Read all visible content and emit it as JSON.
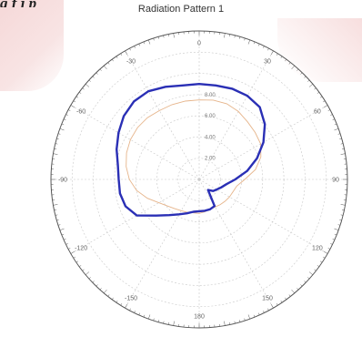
{
  "page": {
    "top_fragment": "g                          f   j   p"
  },
  "chart_data": {
    "type": "polar",
    "title": "Radiation Pattern 1",
    "angle_labels": [
      "0",
      "30",
      "60",
      "90",
      "120",
      "150",
      "180",
      "-150",
      "-120",
      "-90",
      "-60",
      "-30"
    ],
    "angle_values": [
      0,
      30,
      60,
      90,
      120,
      150,
      180,
      -150,
      -120,
      -90,
      -60,
      -30
    ],
    "radial_ticks": [
      2.0,
      4.0,
      6.0,
      8.0
    ],
    "radial_tick_labels": [
      "2.00",
      "4.00",
      "6.00",
      "8.00"
    ],
    "r_max": 14,
    "grid": true,
    "colors": {
      "series_main": "#2a2fb5",
      "series_faint": "#e6b48a",
      "grid": "#c8c8c8",
      "axis": "#555555"
    },
    "series": [
      {
        "theta": [
          0,
          10,
          20,
          30,
          40,
          50,
          60,
          70,
          80,
          90,
          100,
          110,
          120,
          130,
          140,
          150,
          160,
          170,
          180,
          -170,
          -160,
          -150,
          -140,
          -130,
          -120,
          -110,
          -100,
          -90,
          -80,
          -70,
          -60,
          -50,
          -40,
          -30,
          -20,
          -10
        ],
        "r": [
          9.0,
          9.0,
          9.1,
          9.1,
          8.9,
          8.1,
          7.0,
          5.8,
          4.6,
          3.4,
          2.6,
          2.2,
          1.9,
          1.7,
          1.3,
          2.9,
          3.0,
          3.0,
          3.0,
          3.1,
          3.4,
          3.8,
          4.4,
          5.3,
          6.8,
          7.4,
          7.6,
          7.6,
          7.8,
          8.3,
          8.8,
          9.3,
          9.6,
          9.6,
          9.3,
          9.0
        ]
      },
      {
        "theta": [
          0,
          10,
          20,
          30,
          40,
          50,
          60,
          70,
          80,
          90,
          100,
          110,
          120,
          130,
          140,
          150,
          160,
          170,
          180,
          -170,
          -160,
          -150,
          -140,
          -130,
          -120,
          -110,
          -100,
          -90,
          -80,
          -70,
          -60,
          -50,
          -40,
          -30,
          -20,
          -10
        ],
        "r": [
          7.5,
          7.6,
          7.6,
          7.4,
          7.1,
          6.9,
          6.7,
          6.2,
          5.4,
          4.3,
          3.6,
          3.4,
          3.3,
          3.2,
          3.1,
          3.0,
          3.0,
          3.1,
          3.2,
          3.2,
          3.3,
          3.4,
          3.6,
          3.9,
          4.4,
          5.2,
          6.0,
          6.6,
          7.0,
          7.3,
          7.5,
          7.6,
          7.6,
          7.5,
          7.5,
          7.5
        ]
      }
    ]
  }
}
